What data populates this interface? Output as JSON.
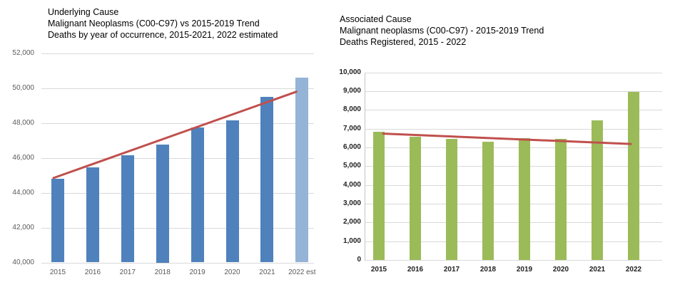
{
  "page": {
    "background": "#ffffff"
  },
  "chart_data": [
    {
      "type": "bar",
      "title": "Underlying Cause",
      "subtitle": "Malignant Neoplasms (C00-C97) vs 2015-2019 Trend",
      "subtitle2": "Deaths by year of occurrence, 2015-2021, 2022 estimated",
      "categories": [
        "2015",
        "2016",
        "2017",
        "2018",
        "2019",
        "2020",
        "2021",
        "2022 est"
      ],
      "values": [
        44800,
        45450,
        46150,
        46750,
        47750,
        48150,
        49500,
        50600
      ],
      "bar_colors": [
        "#4F81BD",
        "#4F81BD",
        "#4F81BD",
        "#4F81BD",
        "#4F81BD",
        "#4F81BD",
        "#4F81BD",
        "#95B3D7"
      ],
      "trend_line": {
        "name": "2015-2019 Trend",
        "start_value": 44850,
        "end_value": 49800,
        "color": "#C0504D"
      },
      "ylim": [
        40000,
        52000
      ],
      "ytick_values": [
        40000,
        42000,
        44000,
        46000,
        48000,
        50000,
        52000
      ],
      "ytick_labels": [
        "40,000",
        "42,000",
        "44,000",
        "46,000",
        "48,000",
        "50,000",
        "52,000"
      ],
      "grid": true,
      "legend": "none",
      "xlabel": "",
      "ylabel": ""
    },
    {
      "type": "bar",
      "title": "Associated Cause",
      "subtitle": "Malignant neoplasms (C00-C97) - 2015-2019 Trend",
      "subtitle2": "Deaths Registered, 2015 - 2022",
      "categories": [
        "2015",
        "2016",
        "2017",
        "2018",
        "2019",
        "2020",
        "2021",
        "2022"
      ],
      "values": [
        6850,
        6550,
        6450,
        6300,
        6500,
        6450,
        7450,
        8950
      ],
      "bar_colors": [
        "#9BBB59",
        "#9BBB59",
        "#9BBB59",
        "#9BBB59",
        "#9BBB59",
        "#9BBB59",
        "#9BBB59",
        "#9BBB59"
      ],
      "trend_line": {
        "name": "2015-2019 Trend",
        "start_value": 6750,
        "end_value": 6200,
        "color": "#C0504D"
      },
      "ylim": [
        0,
        10000
      ],
      "ytick_values": [
        0,
        1000,
        2000,
        3000,
        4000,
        5000,
        6000,
        7000,
        8000,
        9000,
        10000
      ],
      "ytick_labels": [
        "0",
        "1,000",
        "2,000",
        "3,000",
        "4,000",
        "5,000",
        "6,000",
        "7,000",
        "8,000",
        "9,000",
        "10,000"
      ],
      "grid": true,
      "legend": "none",
      "xlabel": "",
      "ylabel": ""
    }
  ]
}
